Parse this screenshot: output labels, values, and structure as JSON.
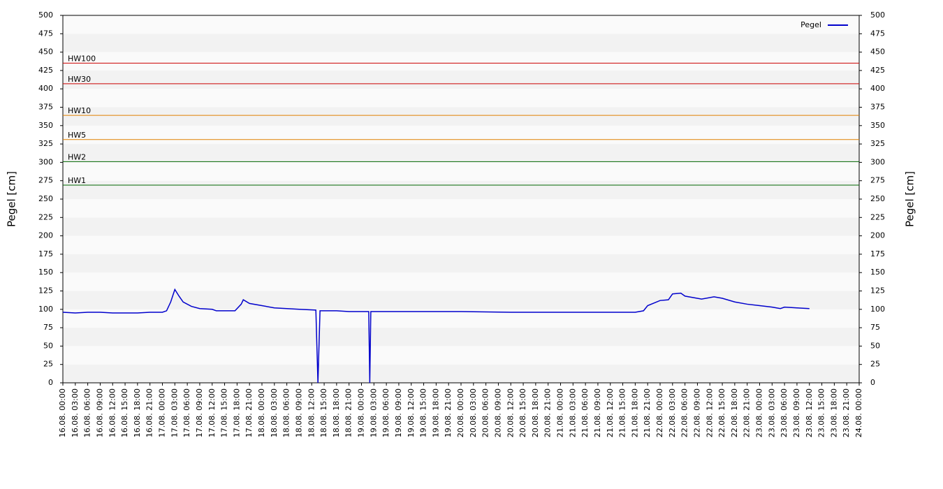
{
  "chart_data": {
    "type": "line",
    "ylabel": "Pegel [cm]",
    "y2label": "Pegel [cm]",
    "xlim": [
      "16.08. 00:00",
      "24.08. 00:00"
    ],
    "xticks": [
      "16.08. 00:00",
      "16.08. 03:00",
      "16.08. 06:00",
      "16.08. 09:00",
      "16.08. 12:00",
      "16.08. 15:00",
      "16.08. 18:00",
      "16.08. 21:00",
      "17.08. 00:00",
      "17.08. 03:00",
      "17.08. 06:00",
      "17.08. 09:00",
      "17.08. 12:00",
      "17.08. 15:00",
      "17.08. 18:00",
      "17.08. 21:00",
      "18.08. 00:00",
      "18.08. 03:00",
      "18.08. 06:00",
      "18.08. 09:00",
      "18.08. 12:00",
      "18.08. 15:00",
      "18.08. 18:00",
      "18.08. 21:00",
      "19.08. 00:00",
      "19.08. 03:00",
      "19.08. 06:00",
      "19.08. 09:00",
      "19.08. 12:00",
      "19.08. 15:00",
      "19.08. 18:00",
      "19.08. 21:00",
      "20.08. 00:00",
      "20.08. 03:00",
      "20.08. 06:00",
      "20.08. 09:00",
      "20.08. 12:00",
      "20.08. 15:00",
      "20.08. 18:00",
      "20.08. 21:00",
      "21.08. 00:00",
      "21.08. 03:00",
      "21.08. 06:00",
      "21.08. 09:00",
      "21.08. 12:00",
      "21.08. 15:00",
      "21.08. 18:00",
      "21.08. 21:00",
      "22.08. 00:00",
      "22.08. 03:00",
      "22.08. 06:00",
      "22.08. 09:00",
      "22.08. 12:00",
      "22.08. 15:00",
      "22.08. 18:00",
      "22.08. 21:00",
      "23.08. 00:00",
      "23.08. 03:00",
      "23.08. 06:00",
      "23.08. 09:00",
      "23.08. 12:00",
      "23.08. 15:00",
      "23.08. 18:00",
      "23.08. 21:00",
      "24.08. 00:00"
    ],
    "ylim": [
      0,
      500
    ],
    "yticks": [
      0,
      25,
      50,
      75,
      100,
      125,
      150,
      175,
      200,
      225,
      250,
      275,
      300,
      325,
      350,
      375,
      400,
      425,
      450,
      475,
      500
    ],
    "y2lim": [
      0,
      500
    ],
    "y2ticks": [
      0,
      25,
      50,
      75,
      100,
      125,
      150,
      175,
      200,
      225,
      250,
      275,
      300,
      325,
      350,
      375,
      400,
      425,
      450,
      475,
      500
    ],
    "grid": true,
    "legend": "upper right",
    "x": [
      "16.08. 00:00",
      "16.08. 03:00",
      "16.08. 06:00",
      "16.08. 09:00",
      "16.08. 12:00",
      "16.08. 18:00",
      "16.08. 21:00",
      "17.08. 00:00",
      "17.08. 01:00",
      "17.08. 02:00",
      "17.08. 03:00",
      "17.08. 04:00",
      "17.08. 05:00",
      "17.08. 07:00",
      "17.08. 09:00",
      "17.08. 12:00",
      "17.08. 13:00",
      "17.08. 17:30",
      "17.08. 19:00",
      "17.08. 19:30",
      "17.08. 21:00",
      "18.08. 00:00",
      "18.08. 03:00",
      "18.08. 06:00",
      "18.08. 09:00",
      "18.08. 13:00",
      "18.08. 13:30",
      "18.08. 14:00",
      "18.08. 18:00",
      "18.08. 21:00",
      "19.08. 01:45",
      "19.08. 02:00",
      "19.08. 02:15",
      "19.08. 06:00",
      "19.08. 12:00",
      "20.08. 00:00",
      "20.08. 12:00",
      "21.08. 00:00",
      "21.08. 18:00",
      "21.08. 20:00",
      "21.08. 21:00",
      "22.08. 00:00",
      "22.08. 02:00",
      "22.08. 03:00",
      "22.08. 05:00",
      "22.08. 06:00",
      "22.08. 08:00",
      "22.08. 10:00",
      "22.08. 13:00",
      "22.08. 15:00",
      "22.08. 18:00",
      "22.08. 21:00",
      "23.08. 00:00",
      "23.08. 03:00",
      "23.08. 05:00",
      "23.08. 06:00",
      "23.08. 09:00",
      "23.08. 12:00"
    ],
    "series": [
      {
        "name": "Pegel",
        "color": "#0000cc",
        "values": [
          96,
          95,
          96,
          96,
          95,
          95,
          96,
          96,
          98,
          110,
          127,
          118,
          110,
          104,
          101,
          100,
          98,
          98,
          107,
          113,
          108,
          105,
          102,
          101,
          100,
          99,
          0,
          98,
          98,
          97,
          97,
          0,
          97,
          97,
          97,
          97,
          96,
          96,
          96,
          98,
          105,
          112,
          113,
          121,
          122,
          118,
          116,
          114,
          117,
          115,
          110,
          107,
          105,
          103,
          101,
          103,
          102,
          101
        ]
      }
    ],
    "thresholds": [
      {
        "label": "HW100",
        "value": 435,
        "color": "#cc0000"
      },
      {
        "label": "HW30",
        "value": 407,
        "color": "#cc0000"
      },
      {
        "label": "HW10",
        "value": 364,
        "color": "#e08000"
      },
      {
        "label": "HW5",
        "value": 331,
        "color": "#e08000"
      },
      {
        "label": "HW2",
        "value": 301,
        "color": "#006600"
      },
      {
        "label": "HW1",
        "value": 269,
        "color": "#006600"
      }
    ]
  }
}
